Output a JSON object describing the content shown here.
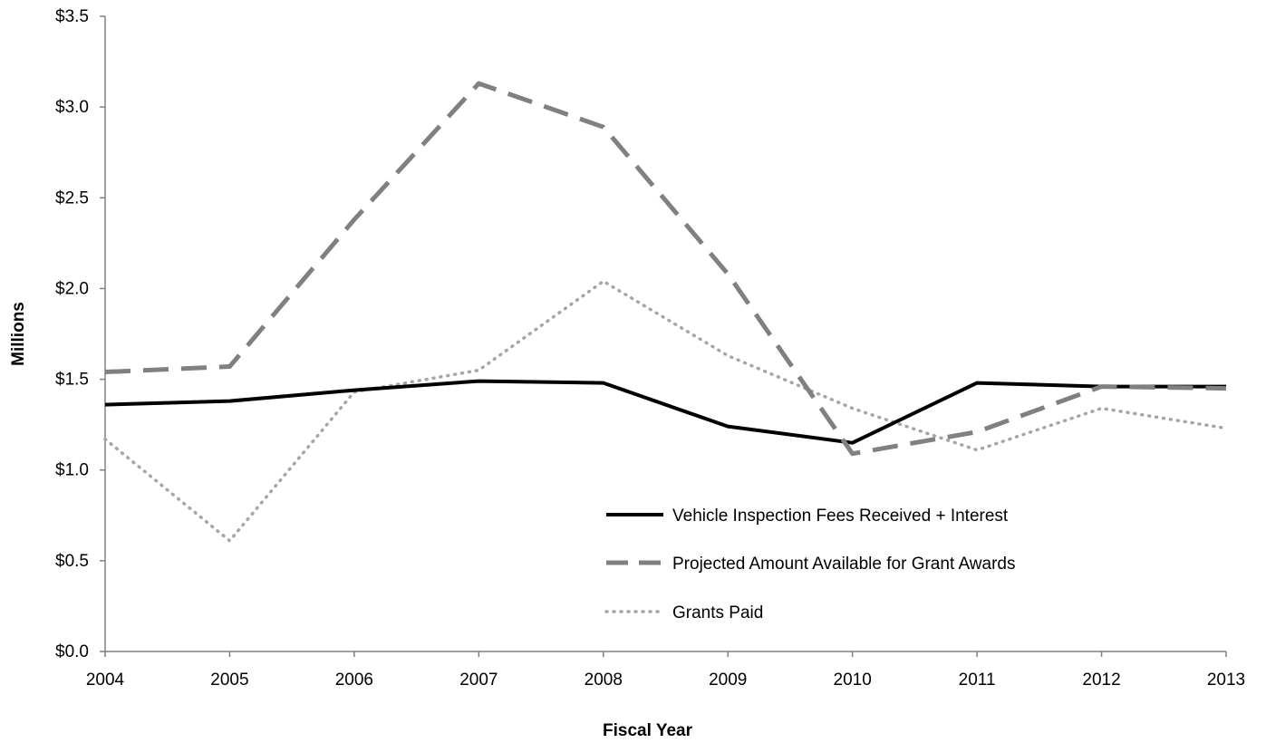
{
  "chart_data": {
    "type": "line",
    "title": "",
    "xlabel": "Fiscal Year",
    "ylabel": "Millions",
    "categories": [
      "2004",
      "2005",
      "2006",
      "2007",
      "2008",
      "2009",
      "2010",
      "2011",
      "2012",
      "2013"
    ],
    "ylim": [
      0,
      3.5
    ],
    "yticks": [
      0,
      0.5,
      1.0,
      1.5,
      2.0,
      2.5,
      3.0,
      3.5
    ],
    "ytick_labels": [
      "$0.0",
      "$0.5",
      "$1.0",
      "$1.5",
      "$2.0",
      "$2.5",
      "$3.0",
      "$3.5"
    ],
    "grid": false,
    "legend_position": "lower-right inside plot",
    "series": [
      {
        "name": "Vehicle Inspection Fees Received + Interest",
        "style": "solid",
        "color": "#000000",
        "values": [
          1.36,
          1.38,
          1.44,
          1.49,
          1.48,
          1.24,
          1.15,
          1.48,
          1.46,
          1.46
        ]
      },
      {
        "name": "Projected Amount Available for Grant Awards",
        "style": "dashed",
        "color": "#808080",
        "values": [
          1.54,
          1.57,
          2.38,
          3.13,
          2.89,
          2.08,
          1.09,
          1.21,
          1.46,
          1.45
        ]
      },
      {
        "name": "Grants Paid",
        "style": "dotted",
        "color": "#a6a6a6",
        "values": [
          1.17,
          0.61,
          1.43,
          1.55,
          2.04,
          1.63,
          1.34,
          1.11,
          1.34,
          1.23
        ]
      }
    ]
  }
}
